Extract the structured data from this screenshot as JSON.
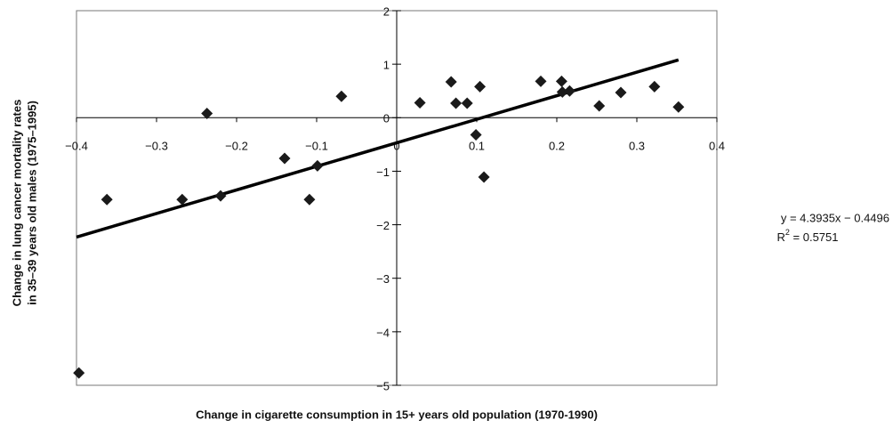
{
  "chart_data": {
    "type": "scatter",
    "x_label": "Change in cigarette consumption in 15+ years old population (1970-1990)",
    "y_label_lines": [
      "Change in lung cancer mortality rates",
      "in 35–39 years old males (1975–1995)"
    ],
    "xlim": [
      -0.4,
      0.4
    ],
    "ylim": [
      -5,
      2
    ],
    "xticks": [
      {
        "value": -0.4,
        "label": "−0.4"
      },
      {
        "value": -0.3,
        "label": "−0.3"
      },
      {
        "value": -0.2,
        "label": "−0.2"
      },
      {
        "value": -0.1,
        "label": "−0.1"
      },
      0,
      0.1,
      0.2,
      0.3,
      0.4
    ],
    "yticks": [
      {
        "value": -5,
        "label": "−5"
      },
      {
        "value": -4,
        "label": "−4"
      },
      {
        "value": -3,
        "label": "−3"
      },
      {
        "value": -2,
        "label": "−2"
      },
      {
        "value": -1,
        "label": "−1"
      },
      0,
      1,
      2
    ],
    "color": "#1a1a1a",
    "x": [
      -0.397,
      -0.362,
      -0.268,
      -0.22,
      -0.237,
      -0.14,
      -0.099,
      -0.109,
      -0.069,
      0.029,
      0.068,
      0.074,
      0.088,
      0.104,
      0.099,
      0.109,
      0.18,
      0.206,
      0.207,
      0.216,
      0.253,
      0.28,
      0.322,
      0.352
    ],
    "values": [
      -4.77,
      -1.53,
      -1.53,
      -1.46,
      0.08,
      -0.76,
      -0.9,
      -1.53,
      0.4,
      0.28,
      0.67,
      0.27,
      0.27,
      0.58,
      -0.32,
      -1.11,
      0.68,
      0.68,
      0.48,
      0.5,
      0.22,
      0.47,
      0.58,
      0.2
    ],
    "trendline": {
      "x": [
        -0.4,
        0.352
      ],
      "values": [
        -2.23,
        1.08
      ]
    },
    "equation": "y = 4.3935x − 0.4496",
    "r_squared": {
      "symbol": "R",
      "exponent": "2",
      "text": " = 0.5751"
    }
  }
}
